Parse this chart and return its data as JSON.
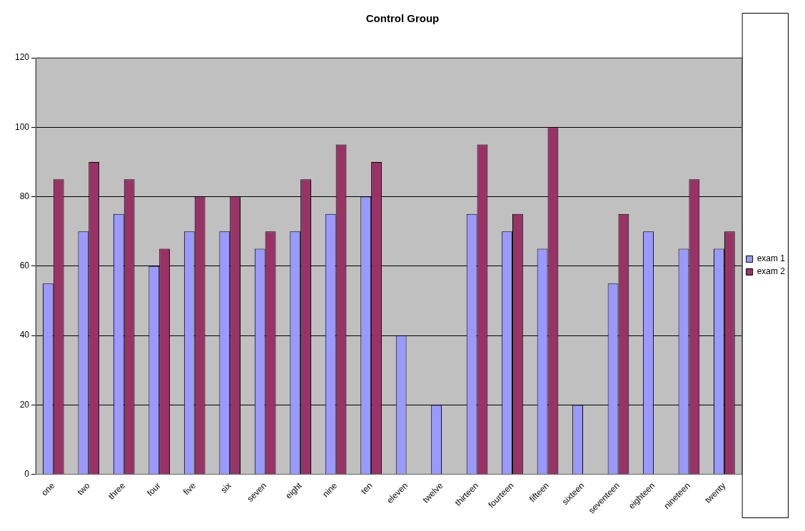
{
  "chart_data": {
    "type": "bar",
    "title": "Control Group",
    "categories": [
      "one",
      "two",
      "three",
      "four",
      "five",
      "six",
      "seven",
      "eight",
      "nine",
      "ten",
      "eleven",
      "twelve",
      "thirteen",
      "fourteen",
      "fifteen",
      "sixteen",
      "seventeen",
      "eighteen",
      "nineteen",
      "twenty"
    ],
    "series": [
      {
        "name": "exam 1",
        "color": "#9999ff",
        "values": [
          55,
          70,
          75,
          60,
          70,
          70,
          65,
          70,
          75,
          80,
          40,
          20,
          75,
          70,
          65,
          20,
          55,
          70,
          65,
          65
        ]
      },
      {
        "name": "exam 2",
        "color": "#993366",
        "values": [
          85,
          90,
          85,
          65,
          80,
          80,
          70,
          85,
          95,
          90,
          null,
          null,
          95,
          75,
          100,
          null,
          75,
          null,
          85,
          70
        ]
      }
    ],
    "ylim": [
      0,
      120
    ],
    "yticks": [
      0,
      20,
      40,
      60,
      80,
      100,
      120
    ],
    "grid": "y",
    "legend": "right"
  }
}
